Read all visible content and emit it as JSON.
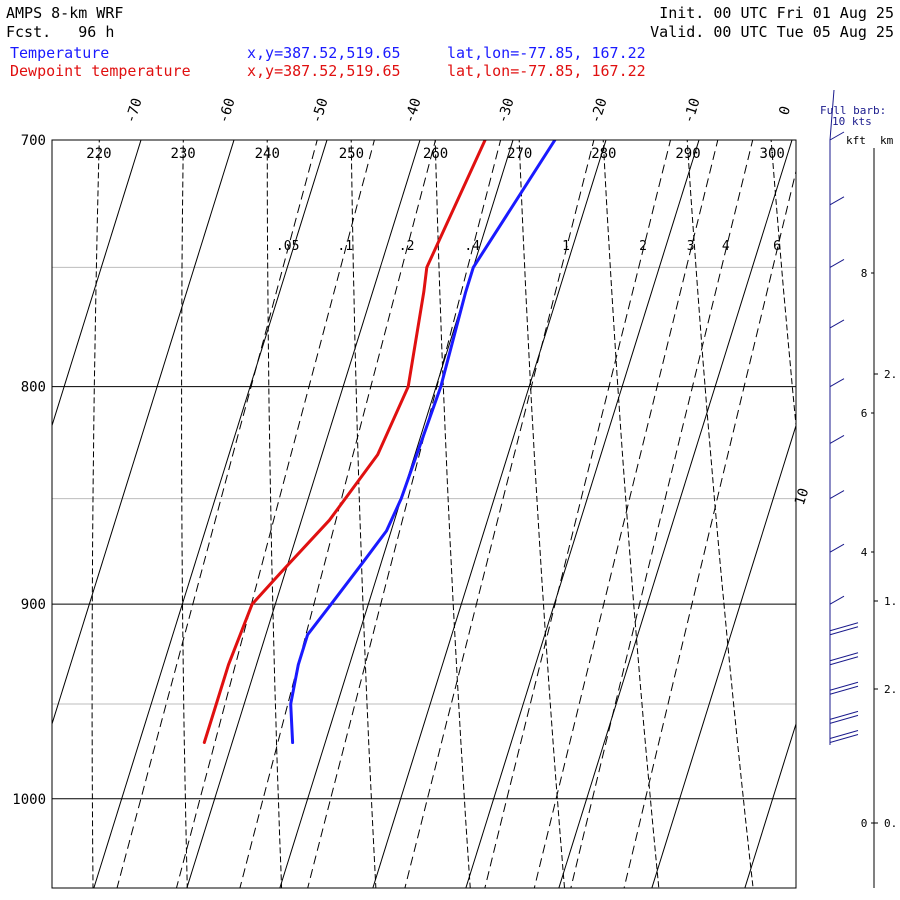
{
  "header": {
    "model": "AMPS 8-km WRF",
    "fcst": "Fcst.   96 h",
    "init": "Init. 00 UTC Fri 01 Aug 25",
    "valid": "Valid. 00 UTC Tue 05 Aug 25",
    "legend": [
      {
        "label": "Temperature",
        "xy": "x,y=387.52,519.65",
        "latlon": "lat,lon=-77.85, 167.22",
        "color": "#1a1aff"
      },
      {
        "label": "Dewpoint temperature",
        "xy": "x,y=387.52,519.65",
        "latlon": "lat,lon=-77.85, 167.22",
        "color": "#e01010"
      }
    ]
  },
  "wind_key": {
    "line1": "Full barb:",
    "line2": "10 kts",
    "units_kft": "kft",
    "units_km": "km"
  },
  "chart_data": {
    "type": "line",
    "title": "AMPS 8-km WRF",
    "ylabel": "",
    "xlabel": "",
    "pressure_ticks": [
      700,
      800,
      900,
      1000
    ],
    "pressure_range": [
      700,
      1050
    ],
    "temperature_ticks": [
      -70,
      -60,
      -50,
      -40,
      -30,
      -20,
      -10,
      0,
      10
    ],
    "theta_labels": [
      220,
      230,
      240,
      250,
      260,
      270,
      280,
      290,
      300
    ],
    "mixing_ratio_labels": [
      ".05",
      ".1",
      ".2",
      ".4",
      "1",
      "2",
      "3",
      "4",
      "6"
    ],
    "height_kft_ticks": [
      "0",
      "4",
      "6",
      "8"
    ],
    "height_km_ticks": [
      "0.",
      "1.",
      "2.",
      "2."
    ],
    "series": [
      {
        "name": "Temperature",
        "color": "#1a1aff",
        "points": [
          {
            "p": 970,
            "t": -33.5
          },
          {
            "p": 950,
            "t": -35.0
          },
          {
            "p": 930,
            "t": -35.5
          },
          {
            "p": 915,
            "t": -35.5
          },
          {
            "p": 900,
            "t": -34.0
          },
          {
            "p": 880,
            "t": -32.0
          },
          {
            "p": 865,
            "t": -30.5
          },
          {
            "p": 850,
            "t": -30.0
          },
          {
            "p": 800,
            "t": -29.5
          },
          {
            "p": 760,
            "t": -30.0
          },
          {
            "p": 750,
            "t": -30.0
          },
          {
            "p": 700,
            "t": -25.5
          }
        ]
      },
      {
        "name": "Dewpoint temperature",
        "color": "#e01010",
        "points": [
          {
            "p": 970,
            "t": -43.0
          },
          {
            "p": 950,
            "t": -43.0
          },
          {
            "p": 930,
            "t": -43.0
          },
          {
            "p": 900,
            "t": -42.5
          },
          {
            "p": 885,
            "t": -40.5
          },
          {
            "p": 860,
            "t": -37.0
          },
          {
            "p": 830,
            "t": -34.0
          },
          {
            "p": 800,
            "t": -33.0
          },
          {
            "p": 760,
            "t": -34.5
          },
          {
            "p": 750,
            "t": -35.0
          },
          {
            "p": 700,
            "t": -33.0
          }
        ]
      }
    ],
    "wind_profile": [
      {
        "p": 700,
        "dir": 200,
        "spd": 5
      },
      {
        "p": 725,
        "dir": 210,
        "spd": 5
      },
      {
        "p": 750,
        "dir": 210,
        "spd": 5
      },
      {
        "p": 775,
        "dir": 220,
        "spd": 5
      },
      {
        "p": 800,
        "dir": 220,
        "spd": 5
      },
      {
        "p": 825,
        "dir": 225,
        "spd": 5
      },
      {
        "p": 850,
        "dir": 230,
        "spd": 5
      },
      {
        "p": 875,
        "dir": 235,
        "spd": 5
      },
      {
        "p": 900,
        "dir": 240,
        "spd": 5
      },
      {
        "p": 915,
        "dir": 250,
        "spd": 10
      },
      {
        "p": 930,
        "dir": 255,
        "spd": 10
      },
      {
        "p": 945,
        "dir": 260,
        "spd": 10
      },
      {
        "p": 960,
        "dir": 265,
        "spd": 10
      },
      {
        "p": 970,
        "dir": 265,
        "spd": 10
      }
    ],
    "grid": true
  }
}
